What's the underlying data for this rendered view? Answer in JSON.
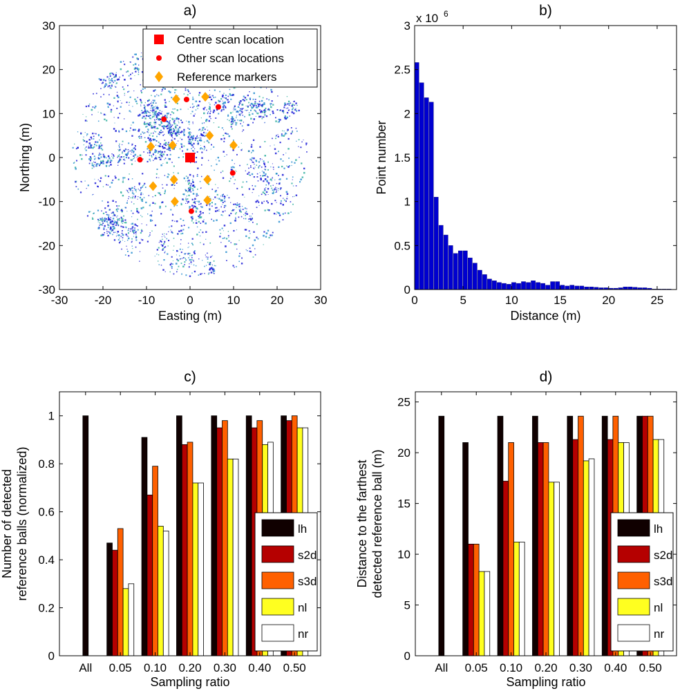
{
  "chart_data": [
    {
      "id": "a",
      "type": "scatter",
      "title": "a)",
      "xlabel": "Easting (m)",
      "ylabel": "Northing (m)",
      "xlim": [
        -30,
        30
      ],
      "ylim": [
        -30,
        30
      ],
      "xticks": [
        "-30",
        "-20",
        "-10",
        "0",
        "10",
        "20",
        "30"
      ],
      "yticks": [
        "-30",
        "-20",
        "-10",
        "0",
        "10",
        "20",
        "30"
      ],
      "colors": {
        "cloud_dark": "#1a1ad6",
        "cloud_mid": "#2a8fd0",
        "cloud_teal": "#34b0a0",
        "scan": "#ff0000",
        "marker": "#ffa500"
      },
      "legend": {
        "position": "top-right",
        "entries": [
          "Centre scan location",
          "Other scan locations",
          "Reference markers"
        ]
      },
      "centre_scan": [
        {
          "x": 0,
          "y": 0
        }
      ],
      "other_scans": [
        {
          "x": -6,
          "y": 8.7
        },
        {
          "x": -0.8,
          "y": 13.2
        },
        {
          "x": 6.5,
          "y": 11.5
        },
        {
          "x": -11.5,
          "y": -0.5
        },
        {
          "x": 9.8,
          "y": -3.5
        },
        {
          "x": 0.3,
          "y": -12.2
        }
      ],
      "reference_markers": [
        {
          "x": -3.2,
          "y": 13.3
        },
        {
          "x": 3.5,
          "y": 13.8
        },
        {
          "x": -9,
          "y": 2.5
        },
        {
          "x": -4,
          "y": 2.8
        },
        {
          "x": 4.5,
          "y": 5
        },
        {
          "x": 10,
          "y": 2.8
        },
        {
          "x": -8.5,
          "y": -6.5
        },
        {
          "x": -3.7,
          "y": -5
        },
        {
          "x": 4,
          "y": -5
        },
        {
          "x": -3.5,
          "y": -10
        },
        {
          "x": 4,
          "y": -9.7
        }
      ]
    },
    {
      "id": "b",
      "type": "bar",
      "title": "b)",
      "xlabel": "Distance (m)",
      "ylabel": "Point number",
      "multiplier": "x 10",
      "multiplier_exp": "6",
      "xlim": [
        0,
        27
      ],
      "ylim": [
        0,
        3
      ],
      "xticks": [
        "0",
        "5",
        "10",
        "15",
        "20",
        "25"
      ],
      "yticks": [
        "0",
        "0.5",
        "1",
        "1.5",
        "2",
        "2.5",
        "3"
      ],
      "bar_width": 0.5,
      "bar_color": "#0000d0",
      "x": [
        0.25,
        0.75,
        1.25,
        1.75,
        2.25,
        2.75,
        3.25,
        3.75,
        4.25,
        4.75,
        5.25,
        5.75,
        6.25,
        6.75,
        7.25,
        7.75,
        8.25,
        8.75,
        9.25,
        9.75,
        10.25,
        10.75,
        11.25,
        11.75,
        12.25,
        12.75,
        13.25,
        13.75,
        14.25,
        14.75,
        15.25,
        15.75,
        16.25,
        16.75,
        17.25,
        17.75,
        18.25,
        18.75,
        19.25,
        19.75,
        20.25,
        20.75,
        21.25,
        21.75,
        22.25,
        22.75,
        23.25,
        23.75,
        24.25,
        24.75,
        25.25,
        25.75,
        26.25
      ],
      "values": [
        2.58,
        2.35,
        2.18,
        2.13,
        1.05,
        0.73,
        0.62,
        0.5,
        0.41,
        0.44,
        0.44,
        0.36,
        0.3,
        0.22,
        0.17,
        0.12,
        0.1,
        0.08,
        0.07,
        0.06,
        0.08,
        0.07,
        0.09,
        0.08,
        0.1,
        0.08,
        0.07,
        0.05,
        0.09,
        0.09,
        0.05,
        0.04,
        0.05,
        0.04,
        0.04,
        0.03,
        0.03,
        0.025,
        0.02,
        0.02,
        0.015,
        0.015,
        0.02,
        0.03,
        0.03,
        0.025,
        0.02,
        0.02,
        0.015,
        0.005,
        0.005,
        0.005,
        0.005
      ]
    },
    {
      "id": "c",
      "type": "bar",
      "title": "c)",
      "xlabel": "Sampling ratio",
      "ylabel": [
        "Number of detected",
        "reference balls (normalized)"
      ],
      "categories": [
        "All",
        "0.05",
        "0.10",
        "0.20",
        "0.30",
        "0.40",
        "0.50"
      ],
      "ylim": [
        0,
        1.1
      ],
      "yticks": [
        "0",
        "0.2",
        "0.4",
        "0.6",
        "0.8",
        "1"
      ],
      "legend": {
        "position": "bottom-right"
      },
      "series": [
        {
          "name": "lh",
          "color": "#100000",
          "values": [
            1,
            0.47,
            0.91,
            1,
            1,
            1,
            1
          ]
        },
        {
          "name": "s2d",
          "color": "#b50000",
          "values": [
            null,
            0.44,
            0.67,
            0.88,
            0.95,
            0.95,
            0.98
          ]
        },
        {
          "name": "s3d",
          "color": "#ff6000",
          "values": [
            null,
            0.53,
            0.79,
            0.89,
            0.98,
            0.98,
            1
          ]
        },
        {
          "name": "nl",
          "color": "#ffff20",
          "values": [
            null,
            0.28,
            0.54,
            0.72,
            0.82,
            0.88,
            0.95
          ]
        },
        {
          "name": "nr",
          "color": "#ffffff",
          "values": [
            null,
            0.3,
            0.52,
            0.72,
            0.82,
            0.89,
            0.95
          ]
        }
      ]
    },
    {
      "id": "d",
      "type": "bar",
      "title": "d)",
      "xlabel": "Sampling ratio",
      "ylabel": [
        "Distance to the farthest",
        "detected reference ball (m)"
      ],
      "categories": [
        "All",
        "0.05",
        "0.10",
        "0.20",
        "0.30",
        "0.40",
        "0.50"
      ],
      "ylim": [
        0,
        26
      ],
      "yticks": [
        "0",
        "5",
        "10",
        "15",
        "20",
        "25"
      ],
      "legend": {
        "position": "bottom-right"
      },
      "series": [
        {
          "name": "lh",
          "color": "#100000",
          "values": [
            23.6,
            21,
            23.6,
            23.6,
            23.6,
            23.6,
            23.6
          ]
        },
        {
          "name": "s2d",
          "color": "#b50000",
          "values": [
            null,
            11,
            17.2,
            21,
            21.3,
            21.3,
            23.6
          ]
        },
        {
          "name": "s3d",
          "color": "#ff6000",
          "values": [
            null,
            11,
            21,
            21,
            23.6,
            23.6,
            23.6
          ]
        },
        {
          "name": "nl",
          "color": "#ffff20",
          "values": [
            null,
            8.3,
            11.2,
            17.1,
            19.2,
            21,
            21.3
          ]
        },
        {
          "name": "nr",
          "color": "#ffffff",
          "values": [
            null,
            8.3,
            11.2,
            17.1,
            19.4,
            21,
            21.3
          ]
        }
      ]
    }
  ]
}
